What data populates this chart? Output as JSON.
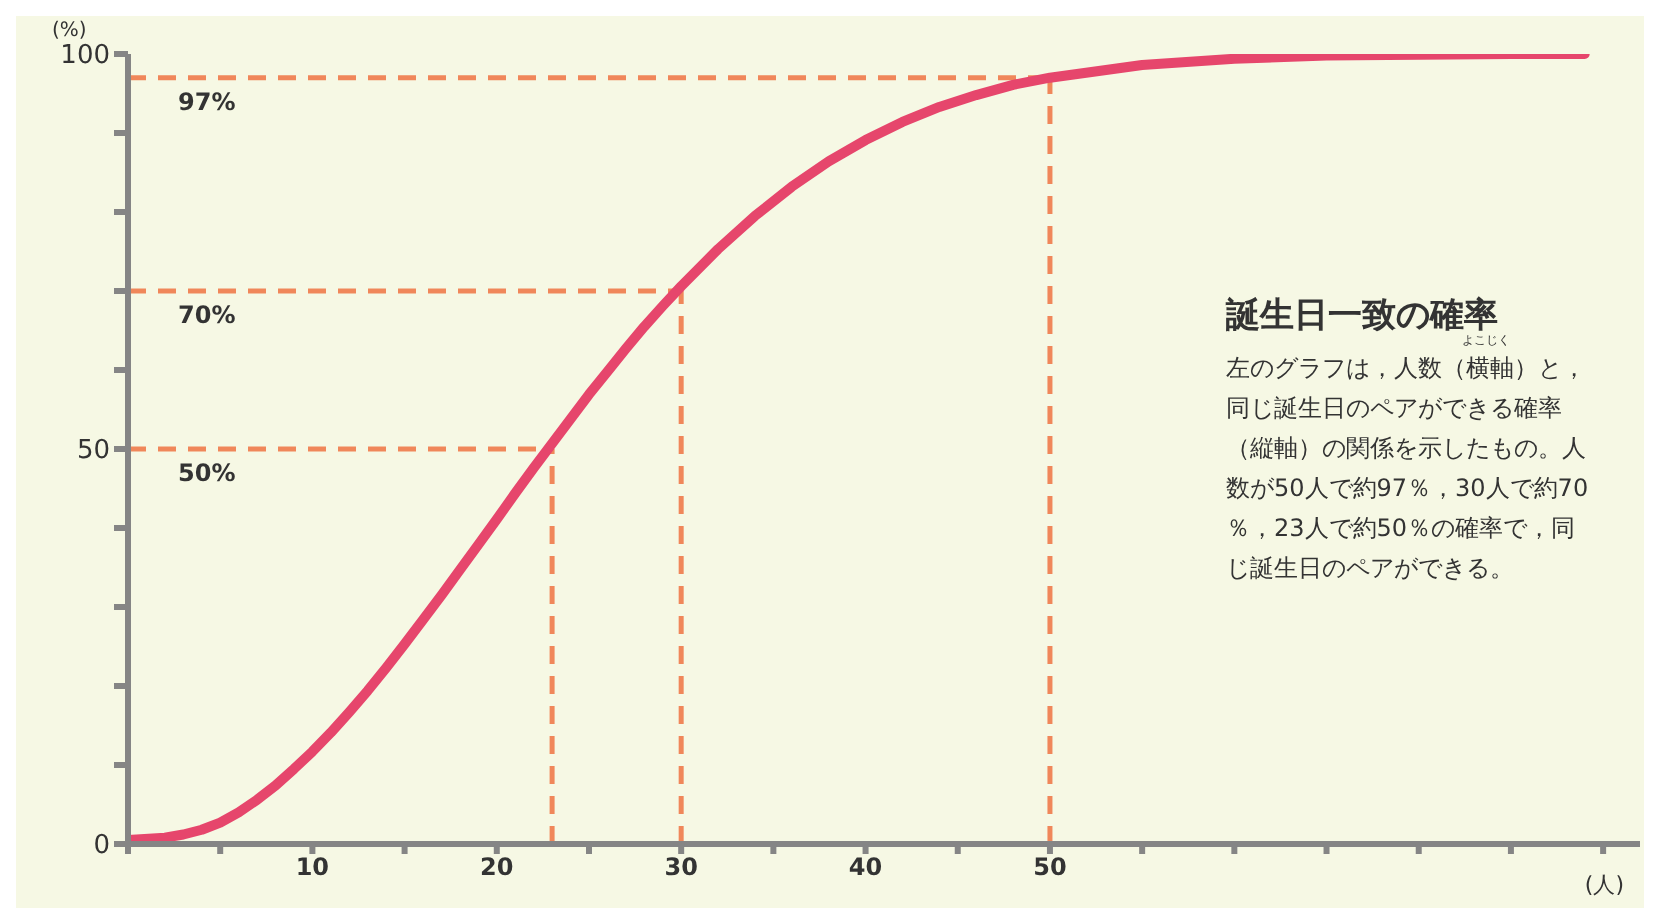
{
  "chart_data": {
    "type": "line",
    "ylabel": "(%)",
    "xlabel": "(人)",
    "annotations": [
      "誕生日一致の確率",
      "よこじく",
      "左のグラフは，人数（横軸）と，",
      "同じ誕生日のペアができる確率",
      "（縦軸）の関係を示したもの。人",
      "数が50人で約97％，30人で約70",
      "％，23人で約50％の確率で，同",
      "じ誕生日のペアができる。"
    ],
    "x": [
      0,
      2,
      3,
      4,
      5,
      6,
      7,
      8,
      9,
      10,
      11,
      12,
      13,
      14,
      15,
      16,
      17,
      18,
      19,
      20,
      21,
      22,
      23,
      24,
      25,
      26,
      27,
      28,
      29,
      30,
      32,
      34,
      36,
      38,
      40,
      42,
      44,
      46,
      48,
      50,
      55,
      60,
      65,
      70,
      75,
      79
    ],
    "series": [
      {
        "color": "#e6466c",
        "values": [
          0.5,
          0.8,
          1.2,
          1.8,
          2.7,
          4.0,
          5.6,
          7.4,
          9.5,
          11.7,
          14.1,
          16.7,
          19.4,
          22.3,
          25.3,
          28.4,
          31.5,
          34.7,
          37.9,
          41.1,
          44.4,
          47.6,
          50.7,
          53.8,
          56.9,
          59.8,
          62.7,
          65.5,
          68.1,
          70.6,
          75.3,
          79.5,
          83.2,
          86.4,
          89.1,
          91.4,
          93.3,
          94.8,
          96.1,
          97.0,
          98.6,
          99.4,
          99.8,
          99.9,
          100.0,
          100.0
        ]
      }
    ],
    "xlim": [
      0,
      82
    ],
    "ylim": [
      0,
      100
    ],
    "xticks": [
      {
        "value": 0,
        "label": null
      },
      {
        "value": 5,
        "label": null
      },
      10,
      {
        "value": 15,
        "label": null
      },
      20,
      {
        "value": 25,
        "label": null
      },
      30,
      {
        "value": 35,
        "label": null
      },
      40,
      {
        "value": 45,
        "label": null
      },
      50,
      {
        "value": 55,
        "label": null
      },
      {
        "value": 60,
        "label": null
      },
      {
        "value": 65,
        "label": null
      },
      {
        "value": 70,
        "label": null
      },
      {
        "value": 75,
        "label": null
      },
      {
        "value": 80,
        "label": null
      }
    ],
    "yticks": [
      0,
      {
        "value": 10,
        "label": null
      },
      {
        "value": 20,
        "label": null
      },
      {
        "value": 30,
        "label": null
      },
      {
        "value": 40,
        "label": null
      },
      50,
      {
        "value": 60,
        "label": null
      },
      {
        "value": 70,
        "label": null
      },
      {
        "value": 80,
        "label": null
      },
      {
        "value": 90,
        "label": null
      },
      100
    ],
    "ref_lines": [
      {
        "axis": "y",
        "value": 97,
        "label": "97%",
        "color": "#f0875a",
        "line_style": "dashed"
      },
      {
        "axis": "y",
        "value": 70,
        "label": "70%",
        "color": "#f0875a",
        "line_style": "dashed"
      },
      {
        "axis": "y",
        "value": 50,
        "label": "50%",
        "color": "#f0875a",
        "line_style": "dashed"
      },
      {
        "axis": "x",
        "value": 50,
        "color": "#f0875a",
        "line_style": "dashed"
      },
      {
        "axis": "x",
        "value": 30,
        "color": "#f0875a",
        "line_style": "dashed"
      },
      {
        "axis": "x",
        "value": 23,
        "color": "#f0875a",
        "line_style": "dashed"
      }
    ],
    "marker": "none",
    "line_style": "solid"
  }
}
